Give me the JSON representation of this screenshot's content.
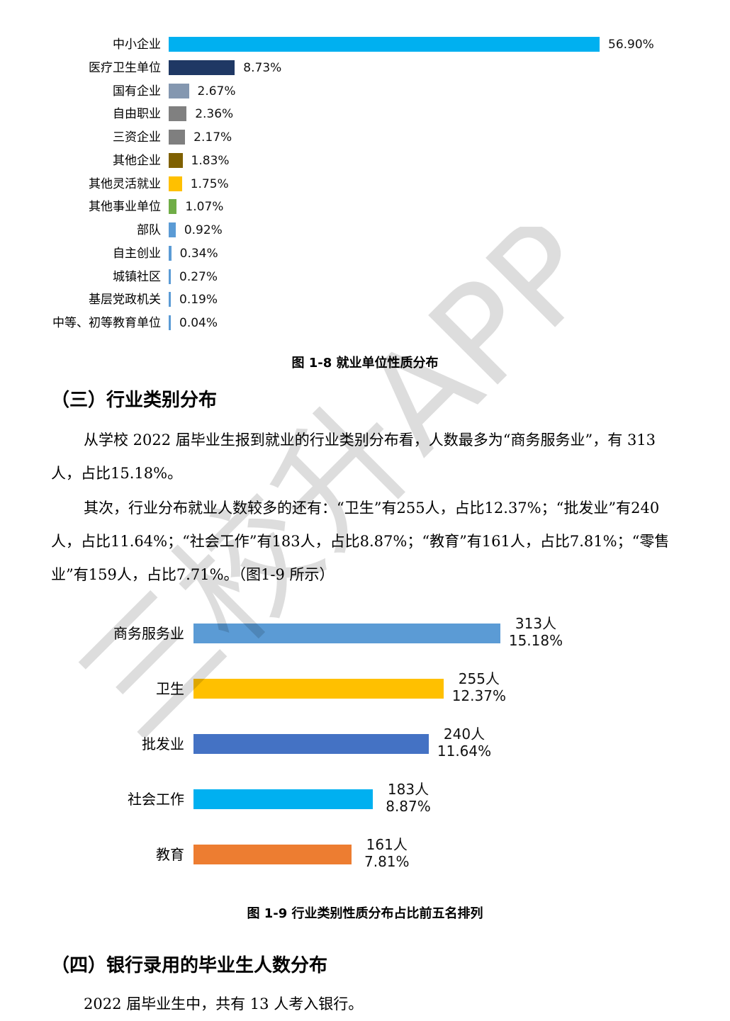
{
  "chart_data": [
    {
      "type": "bar",
      "orientation": "horizontal",
      "categories": [
        "中小企业",
        "医疗卫生单位",
        "国有企业",
        "自由职业",
        "三资企业",
        "其他企业",
        "其他灵活就业",
        "其他事业单位",
        "部队",
        "自主创业",
        "城镇社区",
        "基层党政机关",
        "中等、初等教育单位"
      ],
      "values": [
        56.9,
        8.73,
        2.67,
        2.36,
        2.17,
        1.83,
        1.75,
        1.07,
        0.92,
        0.34,
        0.27,
        0.19,
        0.04
      ],
      "value_labels": [
        "56.90%",
        "8.73%",
        "2.67%",
        "2.36%",
        "2.17%",
        "1.83%",
        "1.75%",
        "1.07%",
        "0.92%",
        "0.34%",
        "0.27%",
        "0.19%",
        "0.04%"
      ],
      "colors": [
        "#00b0f0",
        "#1f3864",
        "#8497b0",
        "#808080",
        "#7f7f7f",
        "#7f6000",
        "#ffc000",
        "#70ad47",
        "#5b9bd5",
        "#5b9bd5",
        "#5b9bd5",
        "#5b9bd5",
        "#5b9bd5"
      ],
      "unit": "%",
      "grid": false,
      "legend": "none",
      "title": "",
      "xlabel": "",
      "ylabel": ""
    },
    {
      "type": "bar",
      "orientation": "horizontal",
      "categories": [
        "商务服务业",
        "卫生",
        "批发业",
        "社会工作",
        "教育"
      ],
      "values": [
        15.18,
        12.37,
        11.64,
        8.87,
        7.81
      ],
      "counts": [
        313,
        255,
        240,
        183,
        161
      ],
      "count_labels": [
        "313人",
        "255人",
        "240人",
        "183人",
        "161人"
      ],
      "value_labels": [
        "15.18%",
        "12.37%",
        "11.64%",
        "8.87%",
        "7.81%"
      ],
      "colors": [
        "#5b9bd5",
        "#ffc000",
        "#4472c4",
        "#00b0f0",
        "#ed7d31"
      ],
      "unit": "%",
      "grid": false,
      "legend": "none",
      "title": "",
      "xlabel": "",
      "ylabel": ""
    }
  ],
  "captions": {
    "fig1": "图 1-8 就业单位性质分布",
    "fig2": "图 1-9 行业类别性质分布占比前五名排列"
  },
  "headings": {
    "section3": "（三）行业类别分布",
    "section4": "（四）银行录用的毕业生人数分布"
  },
  "paragraphs": {
    "p1": "从学校 2022 届毕业生报到就业的行业类别分布看，人数最多为“商务服务业”，有 313 人，占比15.18%。",
    "p2": "其次，行业分布就业人数较多的还有：“卫生”有255人，占比12.37%；“批发业”有240人，占比11.64%；“社会工作”有183人，占比8.87%；“教育”有161人，占比7.81%；“零售业”有159人，占比7.71%。（图1-9 所示）",
    "p3": "2022 届毕业生中，共有 13 人考入银行。"
  },
  "watermark": "三校升APP"
}
